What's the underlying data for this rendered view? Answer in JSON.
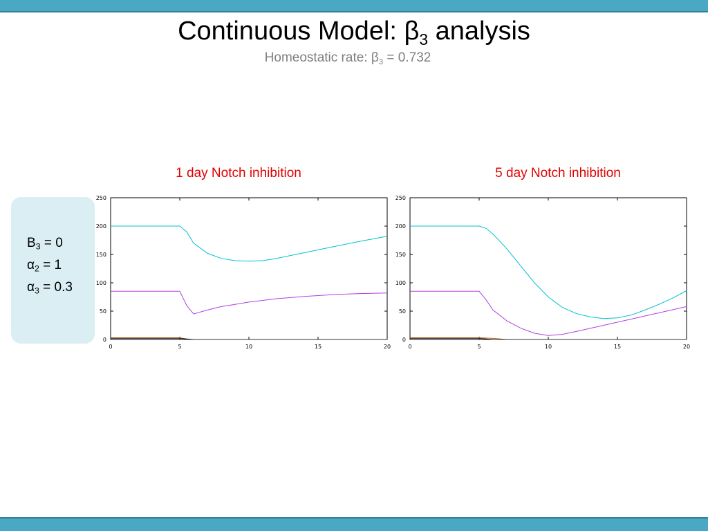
{
  "slide": {
    "title_main": "Continuous Model: β",
    "title_sub": "3",
    "title_rest": " analysis",
    "subtitle_main": "Homeostatic rate: β",
    "subtitle_sub": "3",
    "subtitle_rest": " = 0.732"
  },
  "params": [
    {
      "sym": "B",
      "sub": "3",
      "val": " = 0"
    },
    {
      "sym": "α",
      "sub": "2",
      "val": " = 1"
    },
    {
      "sym": "α",
      "sub": "3",
      "val": " = 0.3"
    }
  ],
  "colors": {
    "bar": "#4aa8c4",
    "title_red": "#e00000",
    "cyan": "#00c0d0",
    "magenta": "#b040e0",
    "orange": "#c06000",
    "dark": "#203040"
  },
  "chart_data": [
    {
      "type": "line",
      "title": "1 day Notch inhibition",
      "xlim": [
        0,
        20
      ],
      "ylim": [
        0,
        250
      ],
      "xticks": [
        0,
        5,
        10,
        15,
        20
      ],
      "yticks": [
        0,
        50,
        100,
        150,
        200,
        250
      ],
      "xlabel": "",
      "ylabel": "",
      "series": [
        {
          "color": "#00c0d0",
          "x": [
            0,
            5,
            5.5,
            6,
            7,
            8,
            9,
            10,
            11,
            12,
            14,
            16,
            18,
            20
          ],
          "y": [
            200,
            200,
            190,
            170,
            152,
            143,
            139,
            138,
            139,
            143,
            153,
            163,
            173,
            182
          ]
        },
        {
          "color": "#b040e0",
          "x": [
            0,
            5,
            5.5,
            6,
            7,
            8,
            9,
            10,
            12,
            14,
            16,
            18,
            20
          ],
          "y": [
            85,
            85,
            60,
            45,
            52,
            58,
            62,
            66,
            72,
            76,
            79,
            81,
            82
          ]
        },
        {
          "color": "#c06000",
          "x": [
            0,
            5,
            5.5,
            6,
            20
          ],
          "y": [
            3,
            3,
            1,
            0,
            0
          ]
        },
        {
          "color": "#203040",
          "x": [
            0,
            5,
            6,
            20
          ],
          "y": [
            2,
            2,
            0,
            0
          ]
        }
      ]
    },
    {
      "type": "line",
      "title": "5 day Notch inhibition",
      "xlim": [
        0,
        20
      ],
      "ylim": [
        0,
        250
      ],
      "xticks": [
        0,
        5,
        10,
        15,
        20
      ],
      "yticks": [
        0,
        50,
        100,
        150,
        200,
        250
      ],
      "xlabel": "",
      "ylabel": "",
      "series": [
        {
          "color": "#00c0d0",
          "x": [
            0,
            5,
            5.5,
            6,
            7,
            8,
            9,
            10,
            11,
            12,
            13,
            14,
            15,
            16,
            17,
            18,
            19,
            20
          ],
          "y": [
            200,
            200,
            196,
            186,
            160,
            130,
            100,
            75,
            57,
            46,
            40,
            37,
            38,
            43,
            52,
            62,
            73,
            86
          ]
        },
        {
          "color": "#b040e0",
          "x": [
            0,
            5,
            5.5,
            6,
            7,
            8,
            9,
            10,
            11,
            12,
            14,
            16,
            18,
            20
          ],
          "y": [
            85,
            85,
            70,
            52,
            33,
            20,
            11,
            7,
            9,
            14,
            25,
            36,
            47,
            58
          ]
        },
        {
          "color": "#c06000",
          "x": [
            0,
            5,
            6,
            7,
            20
          ],
          "y": [
            3,
            3,
            2,
            0,
            0
          ]
        },
        {
          "color": "#203040",
          "x": [
            0,
            5,
            6,
            20
          ],
          "y": [
            2,
            2,
            0,
            0
          ]
        }
      ]
    }
  ]
}
